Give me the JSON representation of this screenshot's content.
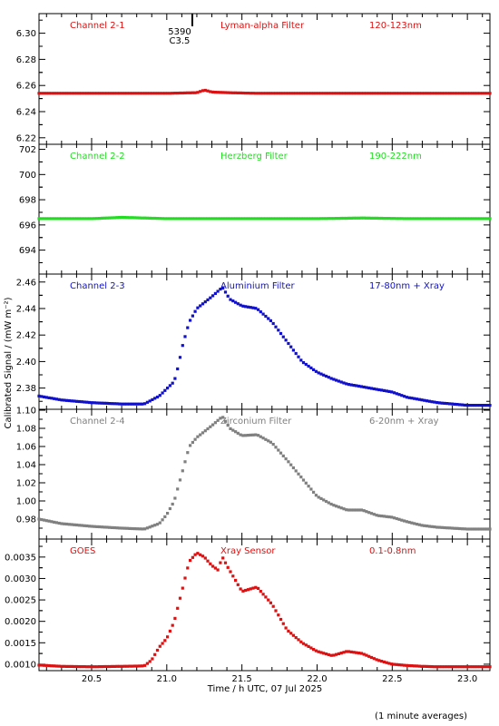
{
  "chart_data": {
    "type": "scatter",
    "xlabel": "Time / h UTC, 07 Jul 2025",
    "ylabel": "Calibrated Signal / (mW m⁻²)",
    "footnote": "(1 minute averages)",
    "xlim": [
      20.15,
      23.15
    ],
    "xticks": [
      "20.5",
      "21.0",
      "21.5",
      "22.0",
      "22.5",
      "23.0"
    ],
    "flare_marker": {
      "x": 21.17,
      "labels": [
        "5390",
        "C3.5"
      ]
    },
    "panels": [
      {
        "channel": "Channel 2-1",
        "filter": "Lyman-alpha Filter",
        "band": "120-123nm",
        "color": "#dd1111",
        "ylim": [
          6.215,
          6.315
        ],
        "yticks": [
          "6.22",
          "6.24",
          "6.26",
          "6.28",
          "6.30"
        ],
        "series": {
          "x": [
            20.15,
            20.5,
            21.0,
            21.2,
            21.25,
            21.3,
            21.4,
            21.6,
            22.0,
            22.5,
            22.9,
            23.15
          ],
          "y": [
            6.254,
            6.254,
            6.254,
            6.2545,
            6.2565,
            6.255,
            6.2545,
            6.254,
            6.254,
            6.254,
            6.254,
            6.254
          ]
        }
      },
      {
        "channel": "Channel 2-2",
        "filter": "Herzberg Filter",
        "band": "190-222nm",
        "color": "#22dd22",
        "ylim": [
          692.1,
          702.4
        ],
        "yticks": [
          "694",
          "696",
          "698",
          "700",
          "702"
        ],
        "series": {
          "x": [
            20.15,
            20.5,
            20.7,
            21.0,
            21.5,
            22.0,
            22.3,
            22.6,
            23.0,
            23.15
          ],
          "y": [
            696.5,
            696.5,
            696.6,
            696.5,
            696.5,
            696.5,
            696.55,
            696.5,
            696.5,
            696.5
          ]
        }
      },
      {
        "channel": "Channel 2-3",
        "filter": "Aluminium Filter",
        "band": "17-80nm + Xray",
        "color": "#1111cc",
        "ylim": [
          2.364,
          2.466
        ],
        "yticks": [
          "2.38",
          "2.40",
          "2.42",
          "2.44",
          "2.46"
        ],
        "series": {
          "x": [
            20.15,
            20.3,
            20.5,
            20.7,
            20.85,
            20.95,
            21.05,
            21.08,
            21.1,
            21.15,
            21.2,
            21.3,
            21.37,
            21.42,
            21.5,
            21.6,
            21.7,
            21.8,
            21.9,
            22.0,
            22.1,
            22.2,
            22.3,
            22.4,
            22.5,
            22.6,
            22.7,
            22.8,
            22.9,
            23.0,
            23.15
          ],
          "y": [
            2.374,
            2.371,
            2.369,
            2.368,
            2.368,
            2.374,
            2.385,
            2.398,
            2.41,
            2.43,
            2.44,
            2.449,
            2.456,
            2.447,
            2.442,
            2.44,
            2.43,
            2.415,
            2.4,
            2.392,
            2.387,
            2.383,
            2.381,
            2.379,
            2.377,
            2.373,
            2.371,
            2.369,
            2.368,
            2.367,
            2.367
          ]
        }
      },
      {
        "channel": "Channel 2-4",
        "filter": "Zirconium Filter",
        "band": "6-20nm + Xray",
        "color": "#808080",
        "ylim": [
          0.958,
          1.101
        ],
        "yticks": [
          "0.98",
          "1.00",
          "1.02",
          "1.04",
          "1.06",
          "1.08",
          "1.10"
        ],
        "series": {
          "x": [
            20.15,
            20.3,
            20.5,
            20.7,
            20.85,
            20.95,
            21.0,
            21.05,
            21.1,
            21.15,
            21.2,
            21.3,
            21.37,
            21.42,
            21.5,
            21.6,
            21.7,
            21.8,
            21.9,
            22.0,
            22.1,
            22.2,
            22.3,
            22.4,
            22.5,
            22.6,
            22.7,
            22.8,
            22.9,
            23.0,
            23.15
          ],
          "y": [
            0.98,
            0.975,
            0.972,
            0.97,
            0.969,
            0.975,
            0.985,
            1.0,
            1.03,
            1.06,
            1.07,
            1.083,
            1.093,
            1.08,
            1.072,
            1.073,
            1.064,
            1.045,
            1.025,
            1.005,
            0.996,
            0.99,
            0.99,
            0.984,
            0.982,
            0.977,
            0.973,
            0.971,
            0.97,
            0.969,
            0.969
          ]
        }
      },
      {
        "channel": "GOES",
        "filter": "Xray Sensor",
        "band": "0.1-0.8nm",
        "color": "#dd1111",
        "ylim": [
          0.00085,
          0.00392
        ],
        "yticks": [
          "0.0010",
          "0.0015",
          "0.0020",
          "0.0025",
          "0.0030",
          "0.0035"
        ],
        "series": {
          "x": [
            20.15,
            20.3,
            20.5,
            20.7,
            20.85,
            20.9,
            20.95,
            21.0,
            21.05,
            21.1,
            21.15,
            21.2,
            21.25,
            21.3,
            21.34,
            21.37,
            21.4,
            21.45,
            21.5,
            21.6,
            21.7,
            21.8,
            21.9,
            22.0,
            22.1,
            22.15,
            22.2,
            22.3,
            22.4,
            22.5,
            22.6,
            22.7,
            22.8,
            22.9,
            23.0,
            23.15
          ],
          "y": [
            0.00098,
            0.00095,
            0.00094,
            0.00095,
            0.00096,
            0.0011,
            0.0014,
            0.0016,
            0.002,
            0.0027,
            0.0034,
            0.0036,
            0.0035,
            0.0033,
            0.0032,
            0.0035,
            0.0033,
            0.003,
            0.0027,
            0.0028,
            0.0024,
            0.0018,
            0.0015,
            0.0013,
            0.0012,
            0.00125,
            0.0013,
            0.00125,
            0.0011,
            0.001,
            0.00097,
            0.00095,
            0.00094,
            0.00094,
            0.00094,
            0.00094
          ]
        }
      }
    ]
  }
}
